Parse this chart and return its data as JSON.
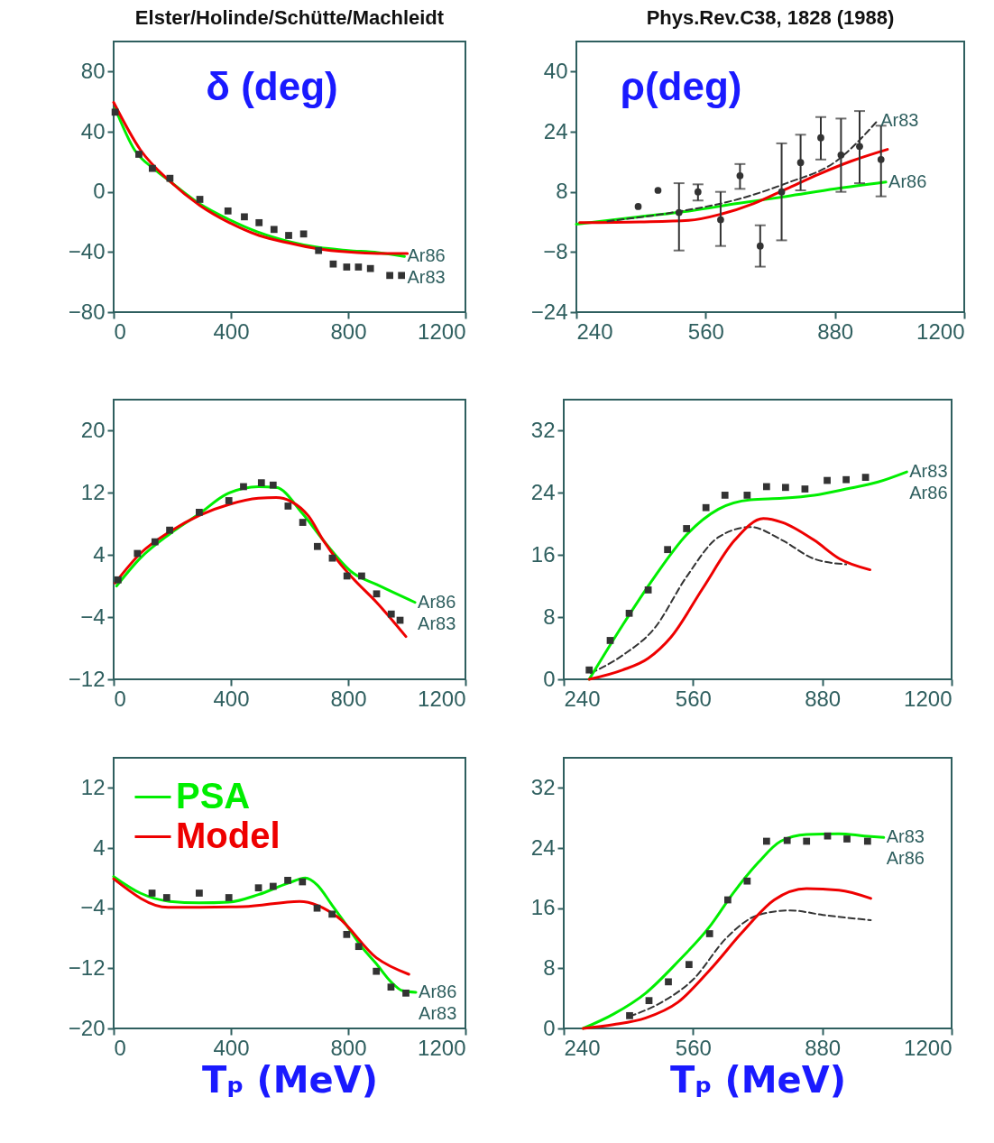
{
  "chart_data": [
    {
      "type": "line",
      "title": "Elster/Holinde/Schütte/Machleidt",
      "ylabel": "δ (deg)",
      "xlim": [
        0,
        1200
      ],
      "xticks": [
        0,
        400,
        800,
        1200
      ],
      "ylim": [
        -80,
        100
      ],
      "yticks": [
        -80,
        -40,
        0,
        40,
        80
      ],
      "grid": false,
      "series": [
        {
          "type": "scatter",
          "marker": "square",
          "color": "#333333",
          "x": [
            5,
            86,
            132,
            192,
            294,
            390,
            446,
            496,
            547,
            597,
            648,
            699,
            749,
            795,
            835,
            876,
            942,
            982
          ],
          "values": [
            53,
            25,
            15.6,
            9,
            -5,
            -12.7,
            -16.6,
            -20.5,
            -25,
            -29,
            -28,
            -39,
            -48,
            -50,
            -50,
            -51,
            -55.6,
            -55.6
          ]
        },
        {
          "color": "#00ee00",
          "x": [
            5,
            71,
            142,
            192,
            294,
            395,
            496,
            597,
            699,
            800,
            901,
            992
          ],
          "values": [
            55.6,
            28,
            14.6,
            7,
            -8,
            -18.5,
            -27,
            -33,
            -37,
            -39,
            -40.4,
            -43
          ]
        },
        {
          "color": "#ee0000",
          "x": [
            0,
            91,
            192,
            294,
            395,
            496,
            597,
            699,
            800,
            901,
            1002
          ],
          "values": [
            59.5,
            28,
            7,
            -9,
            -20.5,
            -29,
            -34,
            -38,
            -40,
            -41,
            -41
          ]
        }
      ],
      "annotations": [
        {
          "text": "Ar86",
          "x": 992,
          "y": -43
        },
        "Ar83"
      ]
    },
    {
      "type": "line",
      "title": "Phys.Rev.C38, 1828 (1988)",
      "ylabel": "ρ(deg)",
      "xlim": [
        240,
        1200
      ],
      "xticks": [
        240,
        560,
        880,
        1200
      ],
      "ylim": [
        -24,
        48
      ],
      "yticks": [
        -24,
        -8,
        8,
        24,
        40
      ],
      "grid": false,
      "series": [
        {
          "type": "scatter",
          "marker": "circle",
          "color": "#333333",
          "x": [
            393,
            442,
            494,
            541,
            597,
            645,
            695,
            748,
            795,
            845,
            895,
            941,
            994
          ],
          "values": [
            4.1,
            8.4,
            2.5,
            8,
            0.6,
            12.3,
            -6.4,
            8,
            15.8,
            22.4,
            17.8,
            20.1,
            16.6
          ],
          "errors": [
            null,
            null,
            [
              -7.6,
              10.3
            ],
            [
              5.7,
              10
            ],
            [
              -6.4,
              8
            ],
            [
              8.8,
              15.4
            ],
            [
              -11.9,
              -0.9
            ],
            [
              -4.9,
              20.9
            ],
            [
              8.4,
              23.2
            ],
            [
              16.6,
              27.9
            ],
            [
              8,
              27.5
            ],
            [
              10.3,
              29.5
            ],
            [
              6.8,
              25.6
            ]
          ]
        },
        {
          "color": "#00ee00",
          "x": [
            240,
            397,
            518,
            639,
            760,
            881,
            1006
          ],
          "values": [
            -0.6,
            1.4,
            2.9,
            4.9,
            6.8,
            8.8,
            10.6
          ]
        },
        {
          "color": "#ee0000",
          "x": [
            248,
            397,
            518,
            599,
            679,
            760,
            840,
            921,
            1010
          ],
          "values": [
            -0.2,
            0,
            0.4,
            2.1,
            4.9,
            8.8,
            12.7,
            16.2,
            19.3
          ]
        },
        {
          "color": "#333333",
          "line_style": "dashed",
          "x": [
            317,
            478,
            639,
            760,
            881,
            986
          ],
          "values": [
            0.2,
            2.5,
            6,
            10.3,
            16,
            27
          ]
        }
      ],
      "annotations": [
        {
          "text": "Ar83",
          "x": 986,
          "y": 27
        },
        {
          "text": "Ar86",
          "x": 1006,
          "y": 10.6
        }
      ]
    },
    {
      "type": "line",
      "xlim": [
        0,
        1200
      ],
      "xticks": [
        0,
        400,
        800,
        1200
      ],
      "ylim": [
        -12,
        24
      ],
      "yticks": [
        -12,
        -4,
        4,
        12,
        20
      ],
      "grid": false,
      "series": [
        {
          "type": "scatter",
          "marker": "square",
          "color": "#333333",
          "x": [
            15,
            81,
            141,
            191,
            292,
            393,
            443,
            504,
            544,
            595,
            645,
            695,
            746,
            796,
            846,
            897,
            947,
            977
          ],
          "values": [
            0.8,
            4.2,
            5.7,
            7.2,
            9.5,
            11,
            12.8,
            13.3,
            13,
            10.3,
            8.2,
            5.1,
            3.6,
            1.3,
            1.3,
            -1,
            -3.6,
            -4.4
          ]
        },
        {
          "color": "#00ee00",
          "x": [
            10,
            91,
            191,
            292,
            383,
            494,
            554,
            645,
            715,
            816,
            897,
            1028
          ],
          "values": [
            0,
            3.6,
            6.7,
            9.3,
            11.8,
            12.8,
            12.7,
            9.3,
            5.9,
            1.7,
            0.2,
            -2.1
          ]
        },
        {
          "color": "#ee0000",
          "x": [
            5,
            91,
            191,
            292,
            393,
            494,
            554,
            605,
            665,
            715,
            766,
            816,
            897,
            997
          ],
          "values": [
            0.4,
            4.2,
            7,
            9.1,
            10.5,
            11.3,
            11.4,
            10.9,
            9,
            5.9,
            3.2,
            1,
            -2.1,
            -6.5
          ]
        }
      ],
      "annotations": [
        {
          "text": "Ar86",
          "x": 1028,
          "y": -2.1
        },
        "Ar83"
      ]
    },
    {
      "type": "line",
      "xlim": [
        240,
        1200
      ],
      "xticks": [
        240,
        560,
        880,
        1200
      ],
      "ylim": [
        0,
        36
      ],
      "yticks": [
        0,
        8,
        16,
        24,
        32
      ],
      "grid": false,
      "series": [
        {
          "type": "scatter",
          "marker": "square",
          "color": "#333333",
          "x": [
            303,
            355,
            402,
            449,
            497,
            544,
            592,
            639,
            694,
            742,
            789,
            837,
            892,
            939,
            987
          ],
          "values": [
            1.2,
            5,
            8.5,
            11.5,
            16.7,
            19.4,
            22.1,
            23.7,
            23.7,
            24.8,
            24.7,
            24.5,
            25.6,
            25.7,
            26
          ]
        },
        {
          "color": "#333333",
          "line_style": "dashed",
          "x": [
            307,
            386,
            465,
            544,
            623,
            702,
            781,
            860,
            939
          ],
          "values": [
            0.8,
            3.1,
            6.6,
            13.2,
            18.3,
            19.6,
            17.9,
            15.5,
            14.8
          ]
        },
        {
          "color": "#00ee00",
          "x": [
            303,
            386,
            465,
            544,
            623,
            702,
            781,
            860,
            939,
            1018,
            1089
          ],
          "values": [
            0,
            7,
            13.2,
            18.6,
            21.9,
            23.1,
            23.3,
            23.7,
            24.5,
            25.4,
            26.7
          ]
        },
        {
          "color": "#ee0000",
          "x": [
            303,
            386,
            449,
            505,
            584,
            663,
            734,
            781,
            860,
            923,
            998
          ],
          "values": [
            0,
            1.2,
            2.7,
            5.4,
            11.7,
            17.9,
            20.7,
            20.2,
            17.9,
            15.5,
            14.1
          ]
        }
      ],
      "annotations": [
        {
          "text": "Ar83",
          "x": 1089,
          "y": 26.7
        },
        "Ar86"
      ]
    },
    {
      "type": "line",
      "xlabel": "Tₚ (MeV)",
      "xlim": [
        0,
        1200
      ],
      "xticks": [
        0,
        400,
        800,
        1200
      ],
      "ylim": [
        -20,
        16
      ],
      "yticks": [
        -20,
        -12,
        -4,
        4,
        12
      ],
      "grid": false,
      "legend": "top left",
      "series": [
        {
          "type": "scatter",
          "marker": "square",
          "color": "#333333",
          "x": [
            131,
            181,
            292,
            393,
            494,
            544,
            594,
            644,
            694,
            745,
            795,
            836,
            896,
            946,
            997
          ],
          "values": [
            -2,
            -2.6,
            -2,
            -2.6,
            -1.3,
            -1.1,
            -0.3,
            -0.5,
            -4,
            -4.8,
            -7.5,
            -9.1,
            -12.4,
            -14.5,
            -15.3
          ]
        },
        {
          "name": "PSA",
          "color": "#00ee00",
          "x": [
            0,
            91,
            191,
            292,
            393,
            494,
            594,
            654,
            694,
            745,
            795,
            845,
            896,
            946,
            986,
            1031
          ],
          "values": [
            0.2,
            -2,
            -3.1,
            -3.3,
            -3.2,
            -2.2,
            -0.7,
            0,
            -0.9,
            -3.6,
            -6.3,
            -9.1,
            -11.4,
            -13.8,
            -15,
            -15.2
          ]
        },
        {
          "name": "Model",
          "color": "#ee0000",
          "x": [
            0,
            186,
            443,
            634,
            765,
            896,
            1007
          ],
          "values": [
            -0.1,
            -3.9,
            -3.8,
            -3.1,
            -5.2,
            -10.6,
            -12.8
          ]
        }
      ],
      "annotations": [
        {
          "text": "Ar86",
          "x": 1031,
          "y": -15.2
        },
        "Ar83"
      ]
    },
    {
      "type": "line",
      "xlabel": "Tₚ (MeV)",
      "xlim": [
        240,
        1200
      ],
      "xticks": [
        240,
        560,
        880,
        1200
      ],
      "ylim": [
        0,
        36
      ],
      "yticks": [
        0,
        8,
        16,
        24,
        32
      ],
      "grid": false,
      "series": [
        {
          "type": "scatter",
          "marker": "square",
          "color": "#333333",
          "x": [
            403,
            451,
            499,
            550,
            601,
            646,
            694,
            742,
            793,
            841,
            893,
            941,
            992
          ],
          "values": [
            1.7,
            3.7,
            6.2,
            8.5,
            12.6,
            17.1,
            19.6,
            24.9,
            25,
            24.9,
            25.6,
            25.2,
            24.9
          ]
        },
        {
          "color": "#333333",
          "line_style": "dashed",
          "x": [
            403,
            483,
            562,
            642,
            722,
            801,
            881,
            1000
          ],
          "values": [
            1.6,
            3.5,
            6.6,
            12,
            15.1,
            15.7,
            15.1,
            14.4
          ]
        },
        {
          "color": "#00ee00",
          "x": [
            288,
            363,
            443,
            523,
            602,
            658,
            722,
            777,
            841,
            921,
            984,
            1032
          ],
          "values": [
            0,
            1.9,
            4.7,
            8.9,
            13.6,
            17.9,
            22.1,
            24.9,
            25.8,
            25.9,
            25.6,
            25.4
          ]
        },
        {
          "color": "#ee0000",
          "x": [
            288,
            363,
            443,
            523,
            602,
            682,
            761,
            841,
            921,
            1000
          ],
          "values": [
            0,
            0.5,
            1.4,
            3.5,
            7.8,
            12.8,
            17.1,
            18.6,
            18.4,
            17.3
          ]
        }
      ],
      "annotations": [
        {
          "text": "Ar83",
          "x": 1032,
          "y": 25.4
        },
        "Ar86"
      ]
    }
  ]
}
